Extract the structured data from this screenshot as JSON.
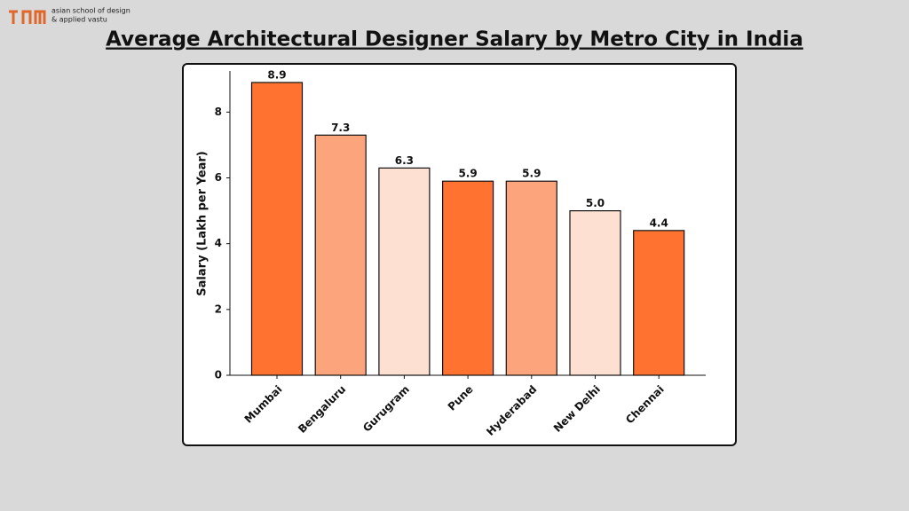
{
  "logo_text": [
    "asian school of design",
    "& applied vastu"
  ],
  "chart_data": {
    "type": "bar",
    "title": "Average Architectural Designer Salary by Metro City in India",
    "y_label": "Salary (Lakh per Year)",
    "categories": [
      "Mumbai",
      "Bengaluru",
      "Gurugram",
      "Pune",
      "Hyderabad",
      "New Delhi",
      "Chennai"
    ],
    "values": [
      8.9,
      7.3,
      6.3,
      5.9,
      5.9,
      5.0,
      4.4
    ],
    "value_labels": [
      "8.9",
      "7.3",
      "6.3",
      "5.9",
      "5.9",
      "5.0",
      "4.4"
    ],
    "colors": [
      "#ff7230",
      "#fca47c",
      "#fde0d2",
      "#ff7230",
      "#fca47c",
      "#fde0d2",
      "#ff7230"
    ],
    "ylim": [
      0,
      9.25
    ],
    "yticks": [
      0,
      2,
      4,
      6,
      8
    ],
    "grid": false
  }
}
